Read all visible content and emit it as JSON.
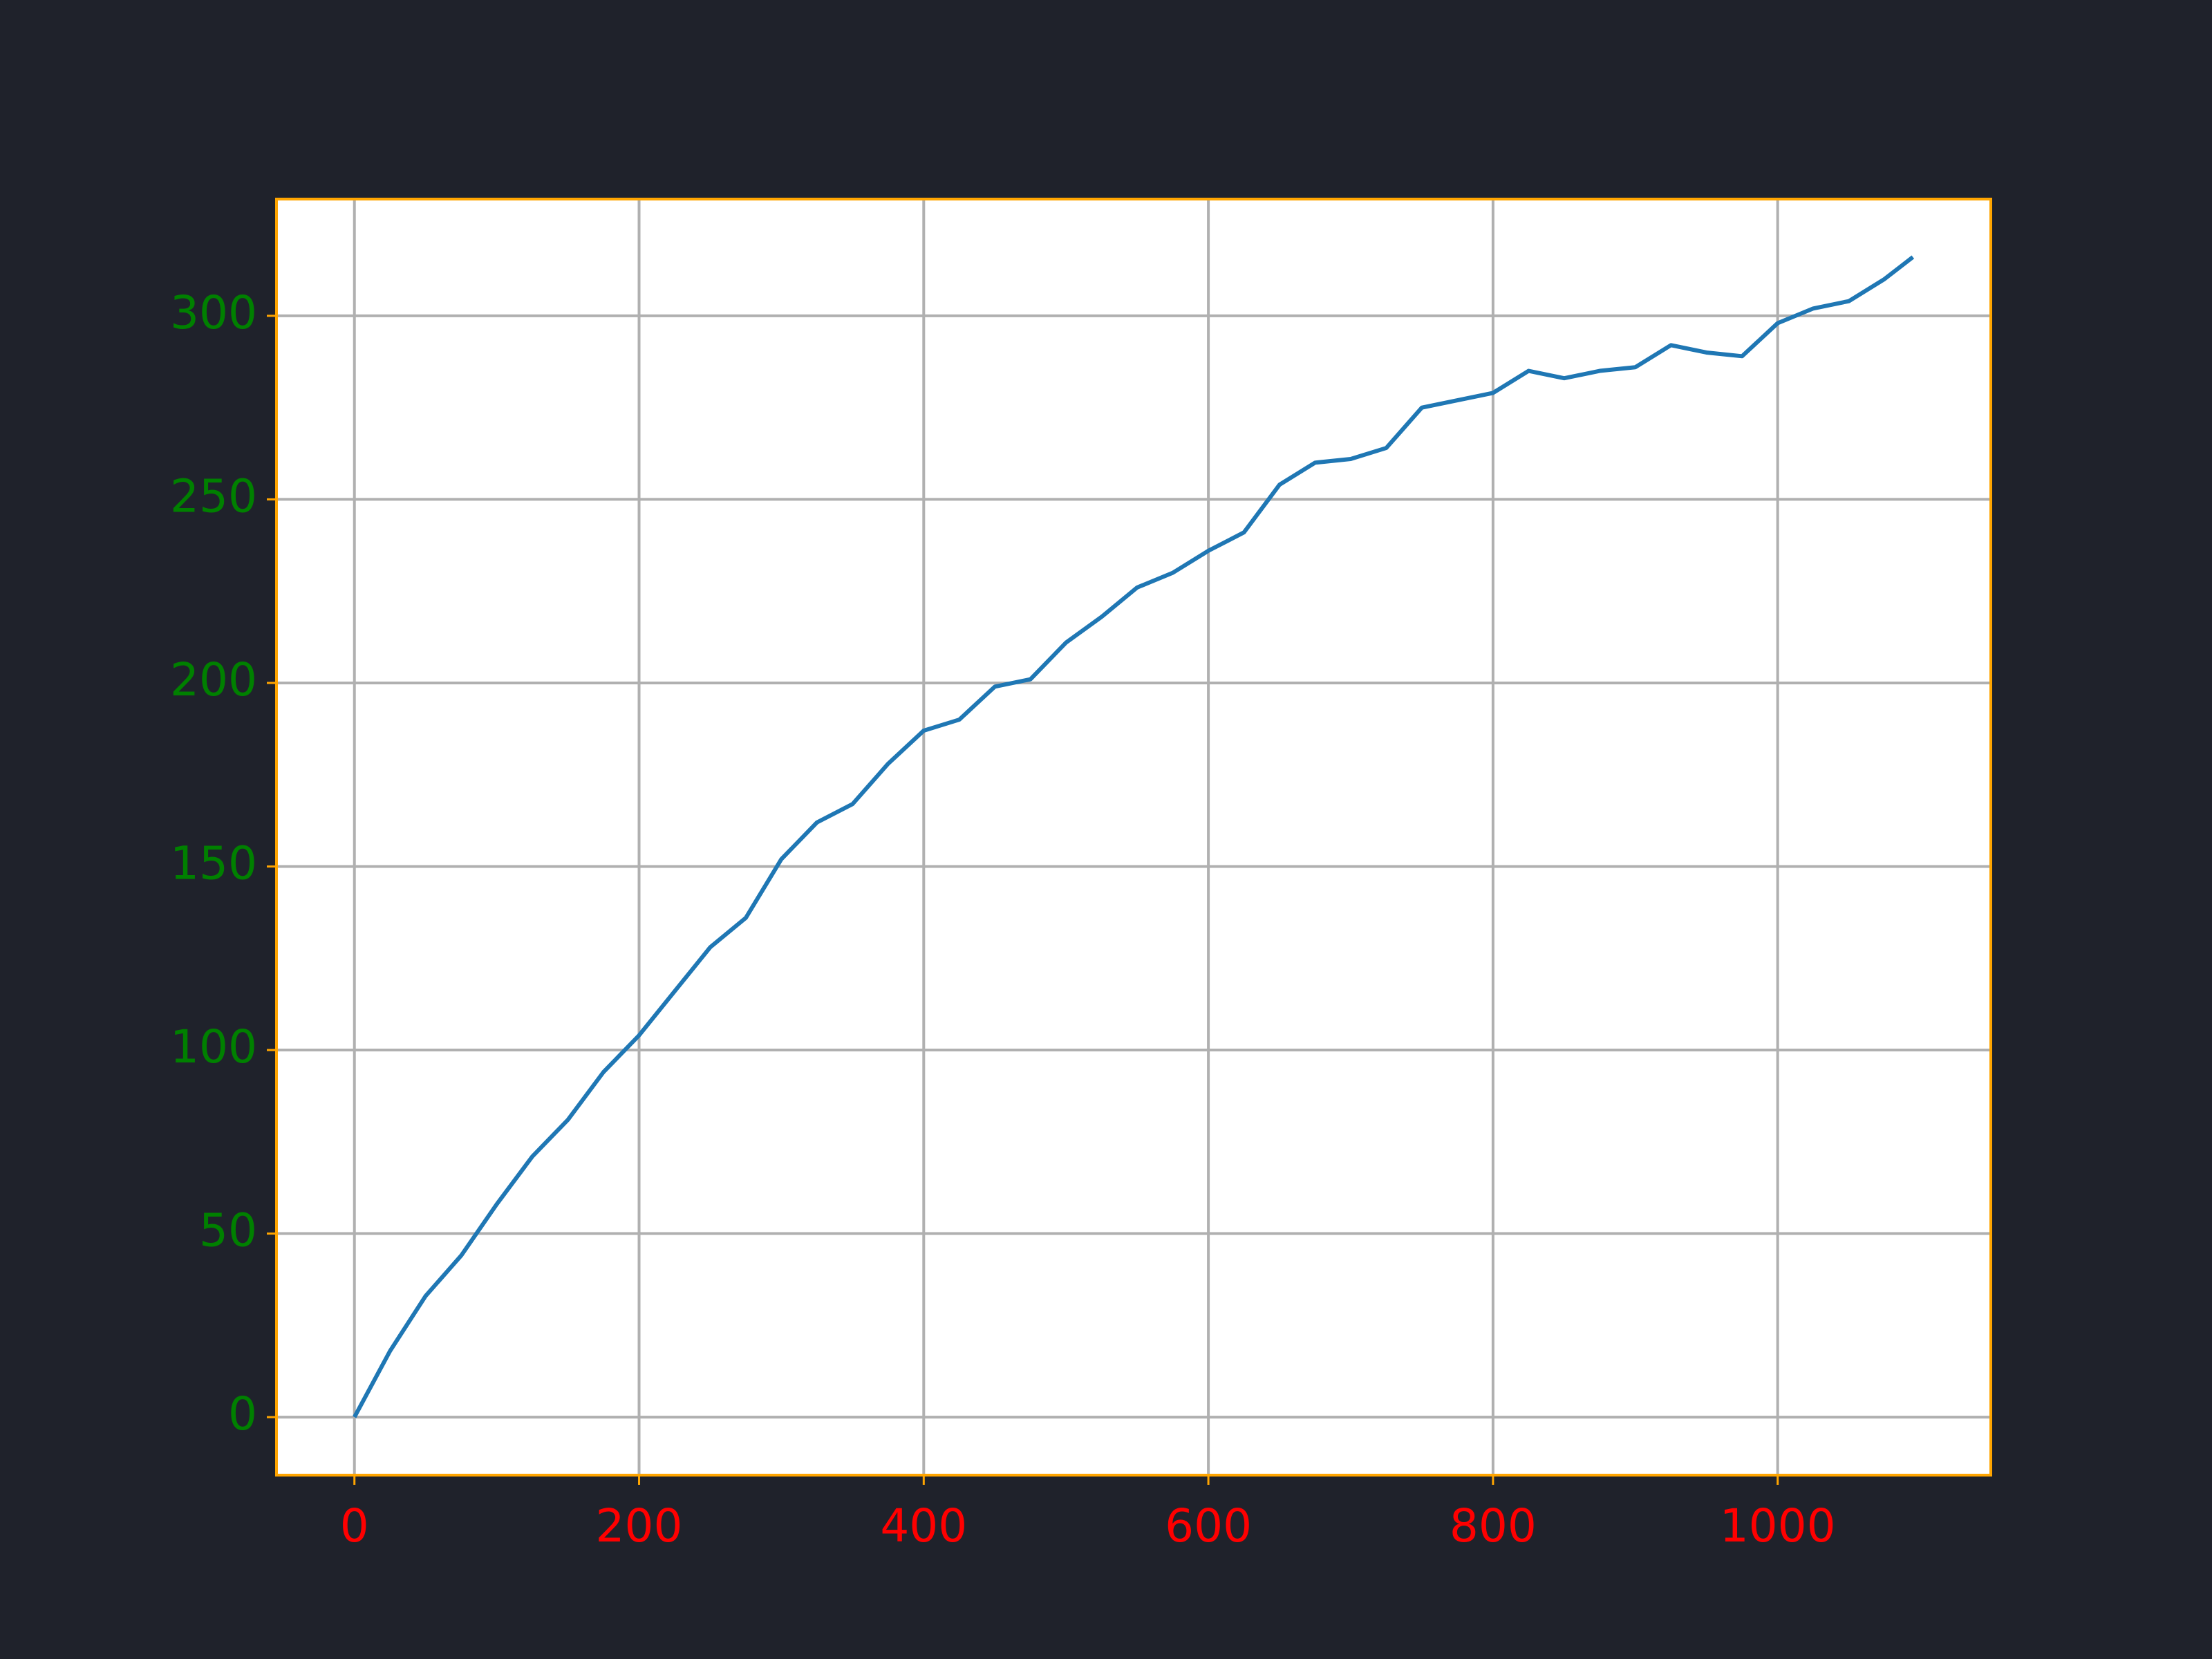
{
  "chart_data": {
    "type": "line",
    "x": [
      0,
      25,
      50,
      75,
      100,
      125,
      150,
      175,
      200,
      225,
      250,
      275,
      300,
      325,
      350,
      375,
      400,
      425,
      450,
      475,
      500,
      525,
      550,
      575,
      600,
      625,
      650,
      675,
      700,
      725,
      750,
      775,
      800,
      825,
      850,
      875,
      900,
      925,
      950,
      975,
      1000,
      1025,
      1050,
      1075,
      1095
    ],
    "series": [
      {
        "color": "#1f77b4",
        "values": [
          0,
          18,
          33,
          44,
          58,
          71,
          81,
          94,
          104,
          116,
          128,
          136,
          152,
          162,
          167,
          178,
          187,
          190,
          199,
          201,
          211,
          218,
          226,
          230,
          236,
          241,
          254,
          260,
          261,
          264,
          275,
          277,
          279,
          285,
          283,
          285,
          286,
          292,
          290,
          289,
          298,
          302,
          304,
          310,
          316
        ]
      }
    ],
    "xlim": [
      -54.75,
      1149.75
    ],
    "ylim": [
      -15.8,
      331.8
    ],
    "xticks": [
      0,
      200,
      400,
      600,
      800,
      1000
    ],
    "yticks": [
      0,
      50,
      100,
      150,
      200,
      250,
      300
    ],
    "grid": true,
    "xtick_color": "#ff0000",
    "ytick_color": "#008000",
    "spine_color": "#ffa500",
    "background": "#1f222b"
  }
}
